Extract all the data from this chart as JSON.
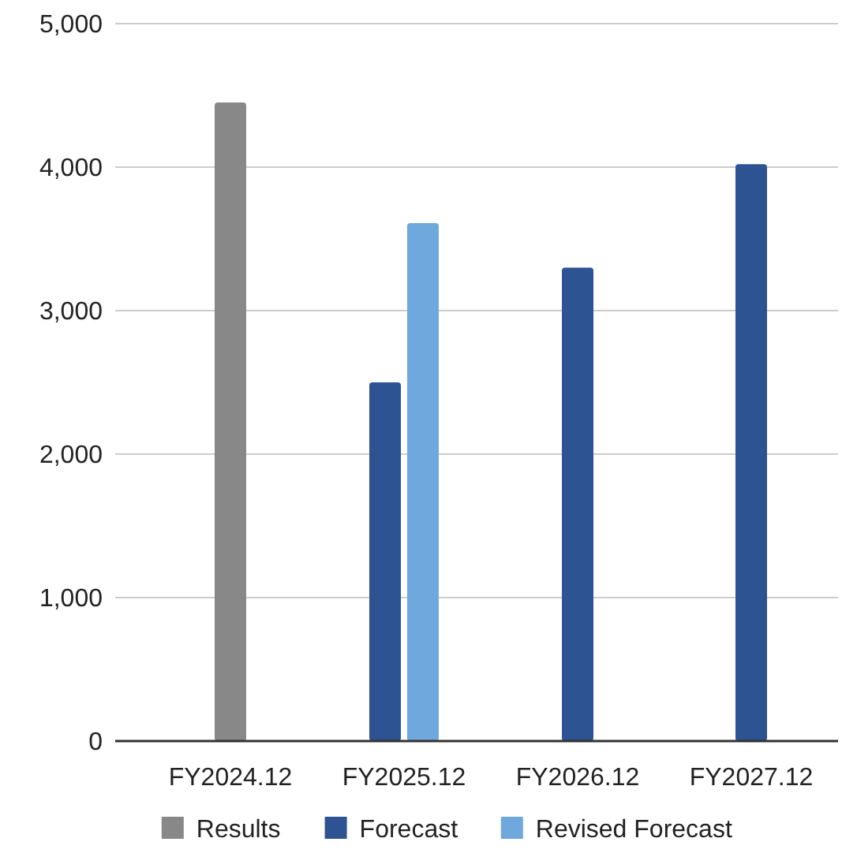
{
  "chart_data": {
    "type": "bar",
    "categories": [
      "FY2024.12",
      "FY2025.12",
      "FY2026.12",
      "FY2027.12"
    ],
    "series": [
      {
        "name": "Results",
        "color": "#888888",
        "values": [
          4450,
          null,
          null,
          null
        ]
      },
      {
        "name": "Forecast",
        "color": "#2e5393",
        "values": [
          null,
          2500,
          3300,
          4020
        ]
      },
      {
        "name": "Revised Forecast",
        "color": "#6fa8dc",
        "values": [
          null,
          3610,
          null,
          null
        ]
      }
    ],
    "ylim": [
      0,
      5000
    ],
    "yticks": [
      {
        "value": 0,
        "label": "0"
      },
      {
        "value": 1000,
        "label": "1,000"
      },
      {
        "value": 2000,
        "label": "2,000"
      },
      {
        "value": 3000,
        "label": "3,000"
      },
      {
        "value": 4000,
        "label": "4,000"
      },
      {
        "value": 5000,
        "label": "5,000"
      }
    ],
    "grid": "y",
    "legend": "bottom"
  }
}
